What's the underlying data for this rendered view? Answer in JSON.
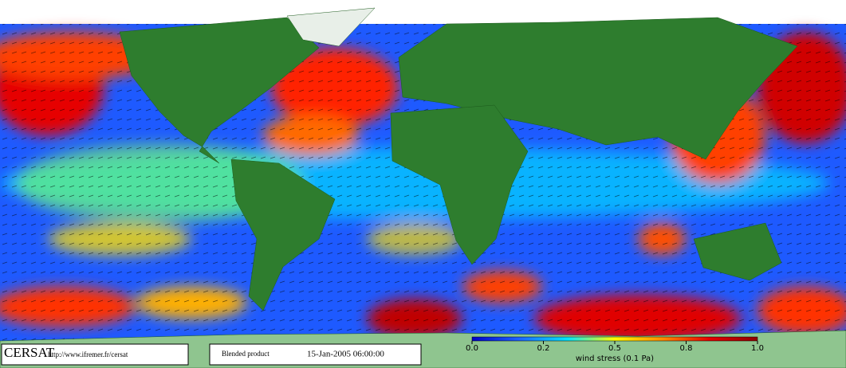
{
  "map": {
    "footer": {
      "logo": "CERSAT",
      "url": "http://www.ifremer.fr/cersat",
      "product": "Blended product",
      "date": "15-Jan-2005 06:00:00"
    },
    "colorbar": {
      "label": "wind stress (0.1 Pa)",
      "colors": [
        "#0000c8",
        "#1e64ff",
        "#00e6ff",
        "#ffff00",
        "#ff8c00",
        "#e60000",
        "#8c0000"
      ],
      "ticks": [
        {
          "value": 0,
          "label": "0.0"
        },
        {
          "value": 0.2,
          "label": "0.2"
        },
        {
          "value": 0.5,
          "label": "0.5"
        },
        {
          "value": 0.8,
          "label": "0.8"
        },
        {
          "value": 1,
          "label": "1.0"
        }
      ]
    }
  }
}
